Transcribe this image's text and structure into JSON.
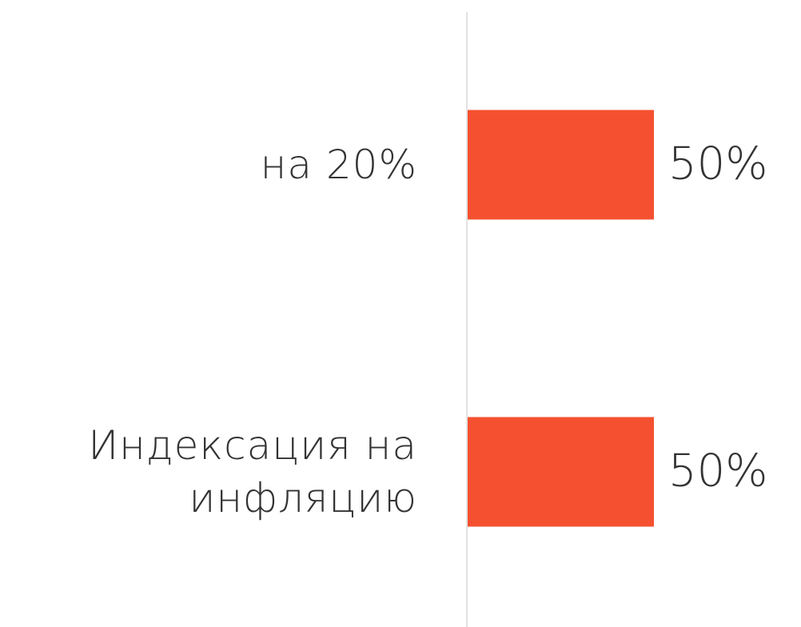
{
  "chart_data": {
    "type": "hbar",
    "categories": [
      "на 20%",
      "Индексация на инфляцию"
    ],
    "values": [
      50,
      50
    ],
    "value_labels": [
      "50%",
      "50%"
    ],
    "color": "#f55130"
  }
}
